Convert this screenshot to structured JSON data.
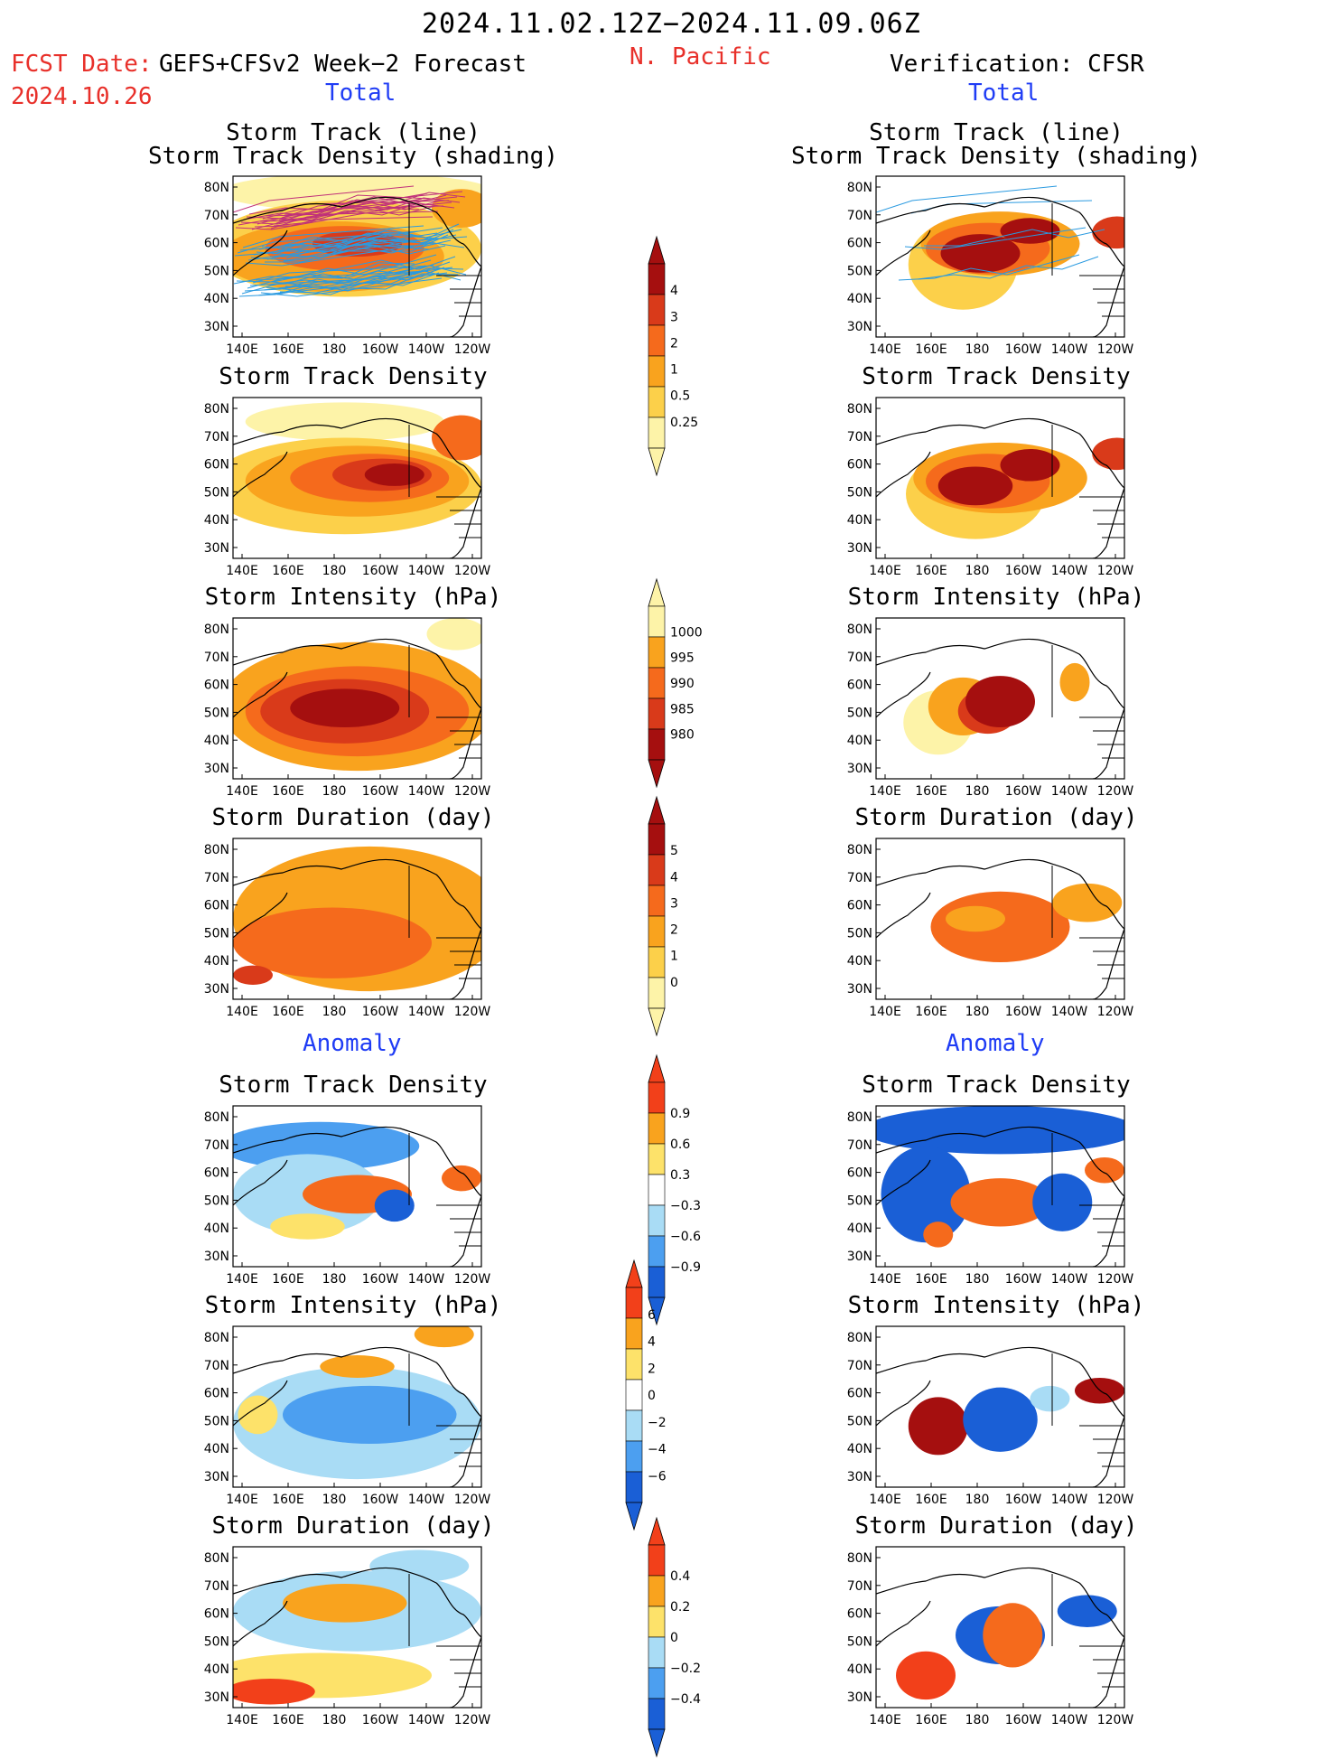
{
  "header": {
    "period": "2024.11.02.12Z−2024.11.09.06Z",
    "region": "N. Pacific",
    "fcst_label": "FCST Date:",
    "fcst_model": "GEFS+CFSv2 Week−2 Forecast",
    "fcst_date": "2024.10.26",
    "verification": "Verification: CFSR",
    "total_left": "Total",
    "total_right": "Total",
    "anomaly_left": "Anomaly",
    "anomaly_right": "Anomaly"
  },
  "panel_titles": {
    "track_line": "Storm Track (line)",
    "track_shading": "Storm Track Density (shading)",
    "density": "Storm Track Density",
    "intensity": "Storm Intensity (hPa)",
    "duration": "Storm Duration (day)"
  },
  "axes": {
    "lat_ticks": [
      "80N",
      "70N",
      "60N",
      "50N",
      "40N",
      "30N"
    ],
    "lon_ticks": [
      "140E",
      "160E",
      "180",
      "160W",
      "140W",
      "120W"
    ]
  },
  "colorbars": {
    "density_total": {
      "labels": [
        "4",
        "3",
        "2",
        "1",
        "0.5",
        "0.25"
      ],
      "colors": [
        "#a50f0f",
        "#d93a1a",
        "#f56a1c",
        "#f9a31e",
        "#fcd04a",
        "#fdf3a8"
      ]
    },
    "intensity_total": {
      "labels": [
        "1000",
        "995",
        "990",
        "985",
        "980"
      ],
      "colors": [
        "#fdf3a8",
        "#f9a31e",
        "#f56a1c",
        "#d93a1a",
        "#a50f0f"
      ]
    },
    "duration_total": {
      "labels": [
        "5",
        "4",
        "3",
        "2",
        "1",
        "0"
      ],
      "colors": [
        "#a50f0f",
        "#d93a1a",
        "#f56a1c",
        "#f9a31e",
        "#fcd04a",
        "#fdf3a8"
      ]
    },
    "density_anom": {
      "labels": [
        "0.9",
        "0.6",
        "0.3",
        "−0.3",
        "−0.6",
        "−0.9"
      ],
      "colors": [
        "#f2401a",
        "#f9a31e",
        "#fde26a",
        "#ffffff",
        "#a9dcf5",
        "#4c9ff0",
        "#1a5fd6"
      ]
    },
    "intensity_anom": {
      "labels": [
        "6",
        "4",
        "2",
        "0",
        "−2",
        "−4",
        "−6"
      ],
      "colors": [
        "#f2401a",
        "#f9a31e",
        "#fde26a",
        "#ffffff",
        "#a9dcf5",
        "#4c9ff0",
        "#1a5fd6"
      ]
    },
    "duration_anom": {
      "labels": [
        "0.4",
        "0.2",
        "0",
        "−0.2",
        "−0.4"
      ],
      "colors": [
        "#f2401a",
        "#f9a31e",
        "#fde26a",
        "#a9dcf5",
        "#4c9ff0",
        "#1a5fd6"
      ]
    }
  }
}
